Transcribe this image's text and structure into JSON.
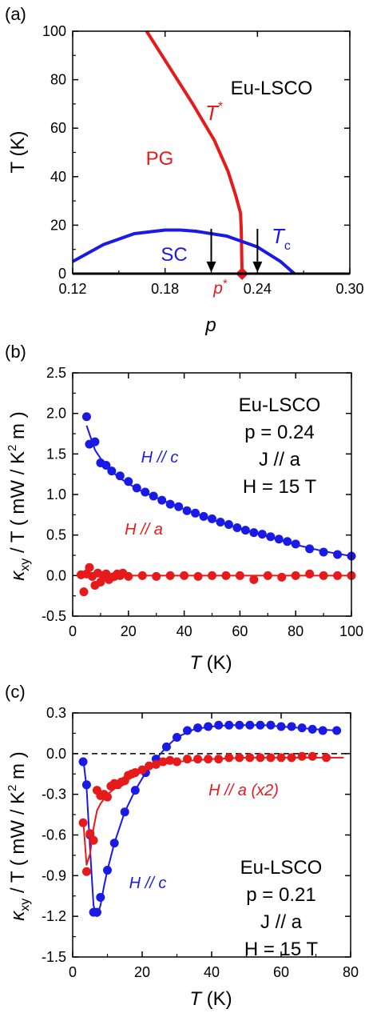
{
  "colors": {
    "blue": "#1a1ae6",
    "red": "#e61a1a",
    "black": "#000000"
  },
  "chart_data": [
    {
      "type": "line",
      "panel_label": "(a)",
      "xlabel": "p",
      "ylabel": "T (K)",
      "xlim": [
        0.12,
        0.3
      ],
      "ylim": [
        0,
        100
      ],
      "x_ticks": [
        0.12,
        0.18,
        0.24,
        0.3
      ],
      "x_tick_labels": [
        "0.12",
        "0.18",
        "0.24",
        "0.30"
      ],
      "y_ticks": [
        0,
        20,
        40,
        60,
        80,
        100
      ],
      "y_tick_labels": [
        "0",
        "20",
        "40",
        "60",
        "80",
        "100"
      ],
      "annotations": {
        "sample": "Eu-LSCO",
        "pg_region": "PG",
        "sc_region": "SC",
        "tstar_main": "T",
        "tstar_sup": "*",
        "tc_main": "T",
        "tc_sub": "c",
        "pstar_main": "p",
        "pstar_sup": "*"
      },
      "pstar": {
        "x": 0.23,
        "y": 0
      },
      "arrows_at_p": [
        0.21,
        0.24
      ],
      "series": [
        {
          "color": "red",
          "x": [
            0.168,
            0.183,
            0.198,
            0.212,
            0.221,
            0.226,
            0.229,
            0.2295,
            0.23
          ],
          "y": [
            100,
            85,
            70,
            55,
            42,
            32,
            25,
            18,
            0
          ]
        },
        {
          "color": "blue",
          "x": [
            0.12,
            0.14,
            0.16,
            0.18,
            0.19,
            0.2,
            0.22,
            0.24,
            0.255,
            0.264
          ],
          "y": [
            5,
            12,
            16.5,
            18,
            18,
            17.5,
            15.5,
            11,
            5,
            0
          ]
        }
      ]
    },
    {
      "type": "scatter",
      "panel_label": "(b)",
      "xlabel_main": "T",
      "xlabel_unit": "(K)",
      "ylabel_kappa": "κ",
      "ylabel_sub": "xy",
      "ylabel_rest": " / T ( mW / K",
      "ylabel_sup": "2",
      "ylabel_end": " m )",
      "xlim": [
        0,
        100
      ],
      "ylim": [
        -0.5,
        2.5
      ],
      "x_ticks": [
        0,
        20,
        40,
        60,
        80,
        100
      ],
      "x_tick_labels": [
        "0",
        "20",
        "40",
        "60",
        "80",
        "100"
      ],
      "y_ticks": [
        -0.5,
        0.0,
        0.5,
        1.0,
        1.5,
        2.0,
        2.5
      ],
      "y_tick_labels": [
        "-0.5",
        "0.0",
        "0.5",
        "1.0",
        "1.5",
        "2.0",
        "2.5"
      ],
      "info": [
        "Eu-LSCO",
        "p = 0.24",
        "J // a",
        "H = 15 T"
      ],
      "series": [
        {
          "name": "H // c",
          "color": "blue",
          "x": [
            5,
            6,
            8,
            10,
            12,
            14,
            17,
            20,
            23,
            26,
            29,
            32,
            35,
            38,
            41,
            44,
            47,
            50,
            53,
            56,
            59,
            62,
            65,
            68,
            71,
            74,
            77,
            80,
            85,
            90,
            95,
            100
          ],
          "y": [
            1.96,
            1.62,
            1.65,
            1.39,
            1.36,
            1.29,
            1.23,
            1.16,
            1.08,
            1.03,
            0.98,
            0.93,
            0.88,
            0.85,
            0.8,
            0.77,
            0.73,
            0.7,
            0.66,
            0.63,
            0.59,
            0.56,
            0.53,
            0.51,
            0.48,
            0.45,
            0.42,
            0.39,
            0.33,
            0.29,
            0.26,
            0.24
          ],
          "fit_x": [
            5,
            8,
            12,
            17,
            23,
            30,
            40,
            50,
            60,
            70,
            80,
            90,
            100
          ],
          "fit_y": [
            1.85,
            1.55,
            1.34,
            1.2,
            1.07,
            0.96,
            0.82,
            0.69,
            0.58,
            0.48,
            0.38,
            0.3,
            0.24
          ]
        },
        {
          "name": "H // a",
          "color": "red",
          "x": [
            3,
            4,
            5,
            6,
            7,
            8,
            9,
            10,
            11,
            12,
            13,
            14,
            15,
            16,
            17,
            18,
            20,
            25,
            30,
            35,
            40,
            45,
            50,
            55,
            60,
            65,
            70,
            75,
            80,
            85,
            90,
            95,
            100
          ],
          "y": [
            0.01,
            -0.2,
            0.02,
            0.1,
            -0.01,
            -0.12,
            0.03,
            -0.08,
            0.0,
            0.02,
            -0.05,
            -0.02,
            -0.01,
            0.02,
            0.0,
            0.03,
            -0.01,
            0.0,
            -0.01,
            0.0,
            0.0,
            -0.01,
            0.0,
            0.0,
            0.0,
            -0.05,
            0.0,
            -0.02,
            0.0,
            0.02,
            0.0,
            0.0,
            0.0
          ],
          "fit_x": [
            3,
            100
          ],
          "fit_y": [
            0.0,
            0.0
          ]
        }
      ]
    },
    {
      "type": "scatter",
      "panel_label": "(c)",
      "xlabel_main": "T",
      "xlabel_unit": "(K)",
      "ylabel_kappa": "κ",
      "ylabel_sub": "xy",
      "ylabel_rest": " / T ( mW / K",
      "ylabel_sup": "2",
      "ylabel_end": " m )",
      "xlim": [
        0,
        80
      ],
      "ylim": [
        -1.5,
        0.3
      ],
      "x_ticks": [
        0,
        20,
        40,
        60,
        80
      ],
      "x_tick_labels": [
        "0",
        "20",
        "40",
        "60",
        "80"
      ],
      "y_ticks": [
        -1.5,
        -1.2,
        -0.9,
        -0.6,
        -0.3,
        0.0,
        0.3
      ],
      "y_tick_labels": [
        "-1.5",
        "-1.2",
        "-0.9",
        "-0.6",
        "-0.3",
        "0.0",
        "0.3"
      ],
      "info": [
        "Eu-LSCO",
        "p = 0.21",
        "J // a",
        "H = 15 T"
      ],
      "series": [
        {
          "name": "H // c",
          "color": "blue",
          "x": [
            3,
            4,
            5,
            6,
            7,
            8,
            10,
            12,
            15,
            18,
            21,
            24,
            27,
            30,
            33,
            36,
            39,
            42,
            45,
            48,
            51,
            54,
            57,
            60,
            63,
            66,
            69,
            72,
            76
          ],
          "y": [
            -0.06,
            -0.23,
            -0.6,
            -1.17,
            -1.17,
            -1.06,
            -0.86,
            -0.66,
            -0.43,
            -0.27,
            -0.14,
            -0.04,
            0.05,
            0.12,
            0.17,
            0.19,
            0.2,
            0.21,
            0.21,
            0.21,
            0.21,
            0.21,
            0.21,
            0.2,
            0.2,
            0.19,
            0.18,
            0.17,
            0.17
          ],
          "fit_x": [
            3,
            4,
            5,
            6,
            7,
            8,
            9,
            10,
            12,
            15,
            18,
            21,
            24,
            27,
            30,
            35,
            40,
            45,
            50,
            55,
            60,
            65,
            70,
            76
          ],
          "fit_y": [
            -0.03,
            -0.25,
            -0.7,
            -1.12,
            -1.2,
            -1.12,
            -0.98,
            -0.86,
            -0.66,
            -0.43,
            -0.27,
            -0.14,
            -0.04,
            0.05,
            0.12,
            0.18,
            0.2,
            0.21,
            0.21,
            0.21,
            0.2,
            0.19,
            0.18,
            0.17
          ]
        },
        {
          "name": "H // a (x2)",
          "color": "red",
          "x": [
            3,
            4,
            5,
            6,
            7,
            8,
            9,
            10,
            11,
            12,
            13,
            14,
            15,
            16,
            17,
            18,
            20,
            22,
            24,
            26,
            28,
            30,
            33,
            36,
            39,
            42,
            45,
            48,
            51,
            54,
            57,
            60,
            63,
            66,
            69,
            73
          ],
          "y": [
            -0.51,
            -0.87,
            -0.59,
            -0.64,
            -0.27,
            -0.31,
            -0.3,
            -0.32,
            -0.24,
            -0.22,
            -0.23,
            -0.21,
            -0.2,
            -0.16,
            -0.15,
            -0.14,
            -0.12,
            -0.09,
            -0.08,
            -0.06,
            -0.05,
            -0.06,
            -0.04,
            -0.04,
            -0.04,
            -0.04,
            -0.03,
            -0.03,
            -0.03,
            -0.03,
            -0.03,
            -0.03,
            -0.03,
            -0.02,
            -0.02,
            -0.03
          ],
          "fit_x": [
            3,
            4,
            5,
            6,
            7,
            8,
            10,
            12,
            15,
            18,
            21,
            25,
            30,
            35,
            40,
            50,
            60,
            70,
            78
          ],
          "fit_y": [
            -0.48,
            -0.82,
            -0.74,
            -0.55,
            -0.42,
            -0.37,
            -0.3,
            -0.26,
            -0.21,
            -0.16,
            -0.12,
            -0.08,
            -0.06,
            -0.05,
            -0.04,
            -0.03,
            -0.03,
            -0.03,
            -0.03
          ]
        }
      ]
    }
  ]
}
